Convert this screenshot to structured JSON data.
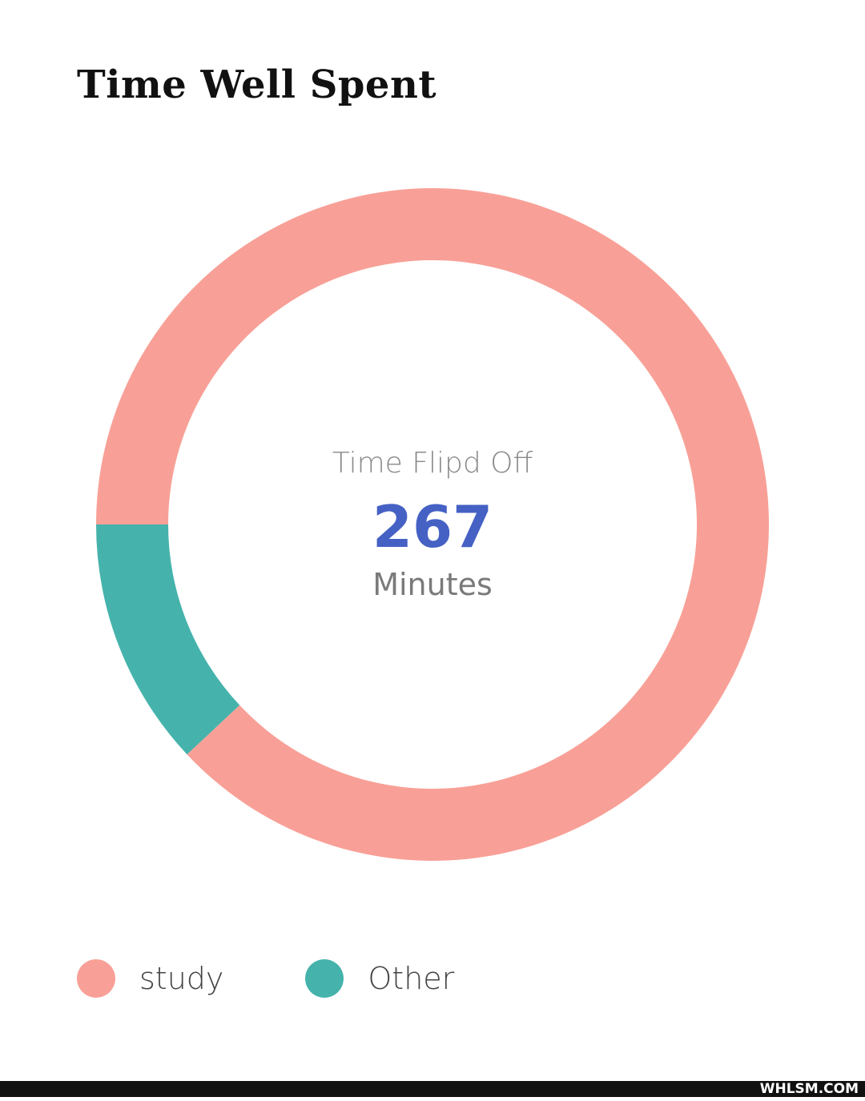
{
  "title": "Time Well Spent",
  "center": {
    "caption": "Time Flipd Off",
    "value": "267",
    "unit": "Minutes"
  },
  "colors": {
    "study": "#f8a097",
    "other": "#45b3ac"
  },
  "watermark": "WHLSM.COM",
  "chart_data": {
    "type": "pie",
    "variant": "donut",
    "title": "Time Well Spent",
    "total": 267,
    "unit": "Minutes",
    "categories": [
      "study",
      "Other"
    ],
    "values": [
      235,
      32
    ],
    "colors": [
      "#f8a097",
      "#45b3ac"
    ],
    "legend": "bottom-left"
  }
}
